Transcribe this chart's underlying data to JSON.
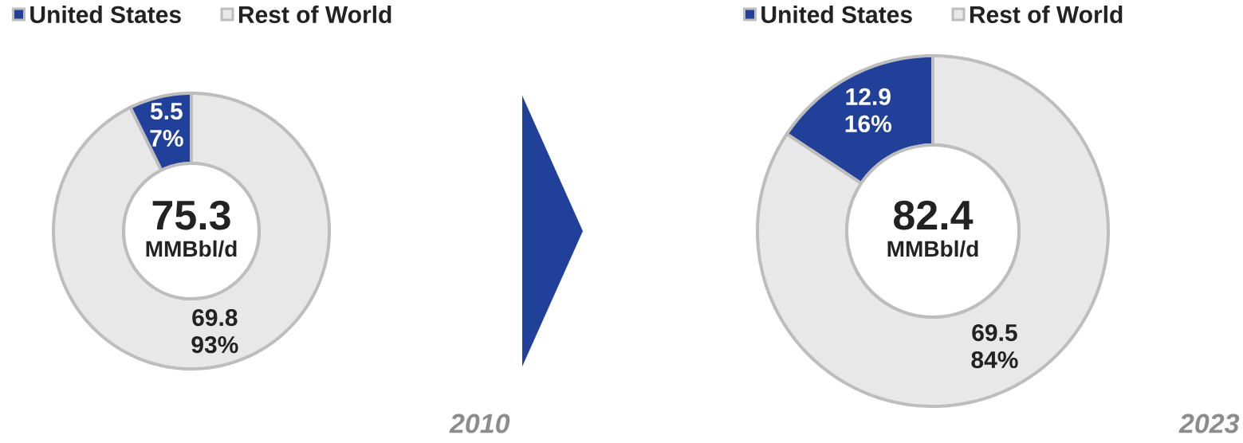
{
  "chart_data": [
    {
      "type": "donut",
      "title": "2010",
      "categories": [
        "United States",
        "Rest of World"
      ],
      "values": [
        5.5,
        69.8
      ],
      "colors": [
        "#21409a",
        "#e8e8e8"
      ],
      "value_labels": [
        "5.5 7%",
        "69.8 93%"
      ],
      "annotations": [
        "75.3",
        "MMBbl/d"
      ],
      "legend": "top"
    },
    {
      "type": "donut",
      "title": "2023",
      "categories": [
        "United States",
        "Rest of World"
      ],
      "values": [
        12.9,
        69.5
      ],
      "colors": [
        "#21409a",
        "#e8e8e8"
      ],
      "value_labels": [
        "12.9 16%",
        "69.5 84%"
      ],
      "annotations": [
        "82.4",
        "MMBbl/d"
      ],
      "legend": "top"
    }
  ]
}
